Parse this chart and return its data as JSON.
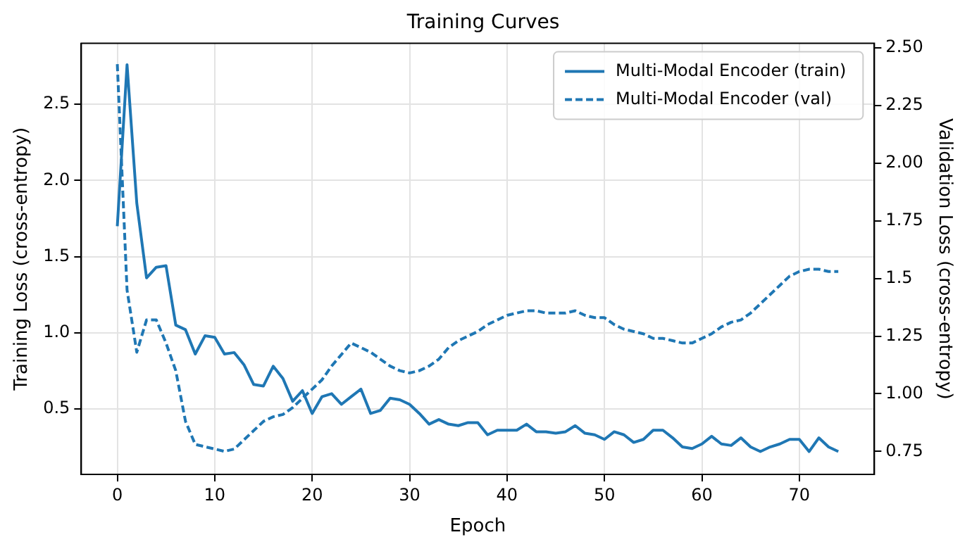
{
  "chart_data": {
    "type": "line",
    "title": "Training Curves",
    "xlabel": "Epoch",
    "ylabel": "Training Loss (cross-entropy)",
    "y2label": "Validation Loss (cross-entropy)",
    "x": [
      0,
      1,
      2,
      3,
      4,
      5,
      6,
      7,
      8,
      9,
      10,
      11,
      12,
      13,
      14,
      15,
      16,
      17,
      18,
      19,
      20,
      21,
      22,
      23,
      24,
      25,
      26,
      27,
      28,
      29,
      30,
      31,
      32,
      33,
      34,
      35,
      36,
      37,
      38,
      39,
      40,
      41,
      42,
      43,
      44,
      45,
      46,
      47,
      48,
      49,
      50,
      51,
      52,
      53,
      54,
      55,
      56,
      57,
      58,
      59,
      60,
      61,
      62,
      63,
      64,
      65,
      66,
      67,
      68,
      69,
      70,
      71,
      72,
      73,
      74
    ],
    "series": [
      {
        "name": "Multi-Modal Encoder (train)",
        "color": "#1f77b4",
        "line_style": "solid",
        "values": [
          1.7,
          2.76,
          1.85,
          1.36,
          1.43,
          1.44,
          1.05,
          1.02,
          0.86,
          0.98,
          0.97,
          0.86,
          0.87,
          0.79,
          0.66,
          0.65,
          0.78,
          0.7,
          0.55,
          0.62,
          0.47,
          0.58,
          0.6,
          0.53,
          0.58,
          0.63,
          0.47,
          0.49,
          0.57,
          0.56,
          0.53,
          0.47,
          0.4,
          0.43,
          0.4,
          0.39,
          0.41,
          0.41,
          0.33,
          0.36,
          0.36,
          0.36,
          0.4,
          0.35,
          0.35,
          0.34,
          0.35,
          0.39,
          0.34,
          0.33,
          0.3,
          0.35,
          0.33,
          0.28,
          0.3,
          0.36,
          0.36,
          0.31,
          0.25,
          0.24,
          0.27,
          0.32,
          0.27,
          0.26,
          0.31,
          0.25,
          0.22,
          0.25,
          0.27,
          0.3,
          0.3,
          0.22,
          0.31,
          0.25,
          0.22
        ]
      },
      {
        "name": "Multi-Modal Encoder (val)",
        "color": "#1f77b4",
        "line_style": "dashed",
        "axis": "y2",
        "values": [
          2.43,
          1.45,
          1.18,
          1.32,
          1.32,
          1.22,
          1.1,
          0.88,
          0.78,
          0.77,
          0.76,
          0.75,
          0.76,
          0.8,
          0.84,
          0.88,
          0.9,
          0.91,
          0.94,
          0.98,
          1.02,
          1.06,
          1.12,
          1.17,
          1.22,
          1.2,
          1.18,
          1.15,
          1.12,
          1.1,
          1.09,
          1.1,
          1.12,
          1.15,
          1.2,
          1.23,
          1.25,
          1.27,
          1.3,
          1.32,
          1.34,
          1.35,
          1.36,
          1.36,
          1.35,
          1.35,
          1.35,
          1.36,
          1.34,
          1.33,
          1.33,
          1.3,
          1.28,
          1.27,
          1.26,
          1.24,
          1.24,
          1.23,
          1.22,
          1.22,
          1.24,
          1.26,
          1.29,
          1.31,
          1.32,
          1.35,
          1.39,
          1.43,
          1.47,
          1.51,
          1.53,
          1.54,
          1.54,
          1.53,
          1.53
        ]
      }
    ],
    "xlim": [
      -3.7,
      77.7
    ],
    "xticks": [
      0,
      10,
      20,
      30,
      40,
      50,
      60,
      70
    ],
    "ylim": [
      0.07,
      2.9
    ],
    "yticks": [
      0.5,
      {
        "value": 1,
        "label": "1.0"
      },
      1.5,
      {
        "value": 2,
        "label": "2.0"
      },
      2.5
    ],
    "y2lim": [
      0.65,
      2.52
    ],
    "y2ticks": [
      0.75,
      {
        "value": 1,
        "label": "1.00"
      },
      1.25,
      1.5,
      1.75,
      {
        "value": 2,
        "label": "2.00"
      },
      2.25,
      {
        "value": 2.5,
        "label": "2.50"
      }
    ],
    "grid": true,
    "legend": "top right",
    "marker": "none"
  }
}
